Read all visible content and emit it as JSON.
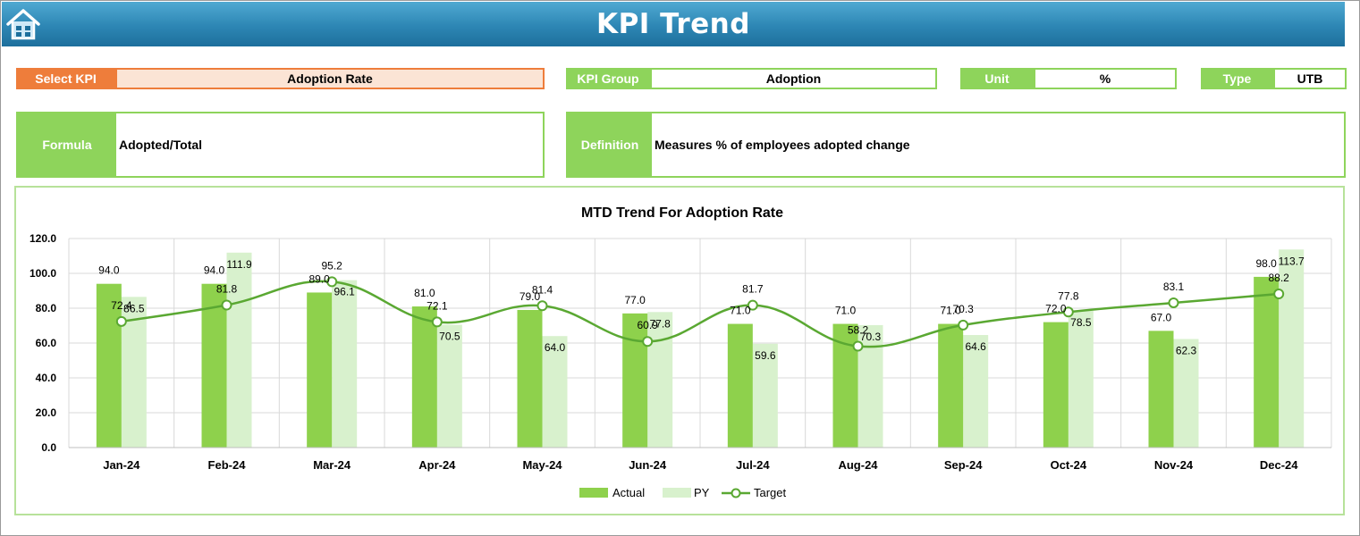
{
  "header": {
    "title": "KPI Trend",
    "home_icon": "home-icon"
  },
  "fields": {
    "select_kpi": {
      "label": "Select KPI",
      "value": "Adoption Rate"
    },
    "kpi_group": {
      "label": "KPI Group",
      "value": "Adoption"
    },
    "unit": {
      "label": "Unit",
      "value": "%"
    },
    "type": {
      "label": "Type",
      "value": "UTB"
    },
    "formula": {
      "label": "Formula",
      "value": "Adopted/Total"
    },
    "definition": {
      "label": "Definition",
      "value": "Measures % of employees adopted change"
    }
  },
  "colors": {
    "actual": "#8ed14c",
    "py": "#d8f1cd",
    "target": "#5aa832",
    "accent_orange": "#ee7d3b",
    "accent_green": "#8ed45b",
    "header": "#2d86b4"
  },
  "chart_data": {
    "type": "bar",
    "title": "MTD Trend For Adoption Rate",
    "categories": [
      "Jan-24",
      "Feb-24",
      "Mar-24",
      "Apr-24",
      "May-24",
      "Jun-24",
      "Jul-24",
      "Aug-24",
      "Sep-24",
      "Oct-24",
      "Nov-24",
      "Dec-24"
    ],
    "ylim": [
      0,
      120
    ],
    "yticks": [
      "0.0",
      "20.0",
      "40.0",
      "60.0",
      "80.0",
      "100.0",
      "120.0"
    ],
    "grid": true,
    "legend_position": "bottom",
    "series": [
      {
        "name": "Actual",
        "kind": "bar",
        "values": [
          94.0,
          94.0,
          89.0,
          81.0,
          79.0,
          77.0,
          71.0,
          71.0,
          71.0,
          72.0,
          67.0,
          98.0
        ]
      },
      {
        "name": "PY",
        "kind": "bar",
        "values": [
          86.5,
          111.9,
          96.1,
          70.5,
          64.0,
          77.8,
          59.6,
          70.3,
          64.6,
          78.5,
          62.3,
          113.7
        ]
      },
      {
        "name": "Target",
        "kind": "line",
        "values": [
          72.4,
          81.8,
          95.2,
          72.1,
          81.4,
          60.9,
          81.7,
          58.2,
          70.3,
          77.8,
          83.1,
          88.2
        ]
      }
    ]
  }
}
